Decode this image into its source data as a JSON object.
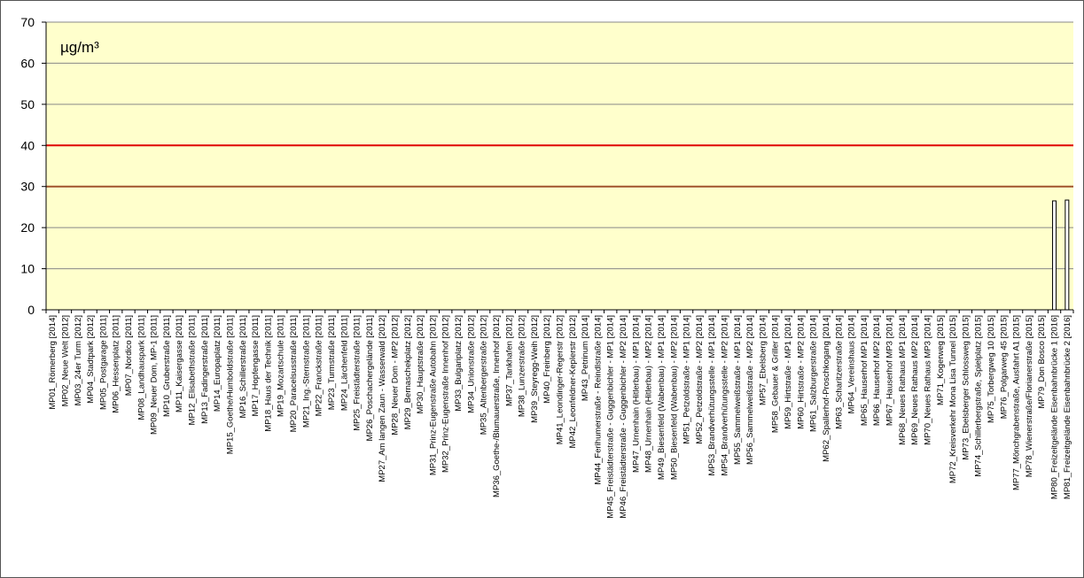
{
  "chart_data": {
    "type": "bar",
    "unit_label": "µg/m³",
    "ylim": [
      0,
      70
    ],
    "yticks": [
      0,
      10,
      20,
      30,
      40,
      50,
      60,
      70
    ],
    "reference_lines": [
      {
        "value": 40,
        "color": "#e00000"
      },
      {
        "value": 30,
        "color": "#a0522d"
      }
    ],
    "plot_background": "#ffffcc",
    "bar_color": "#ffffff",
    "grid": true,
    "categories": [
      "MP01_Römerberg [2014]",
      "MP02_Neue Welt [2012]",
      "MP03_24er Turm [2012]",
      "MP04_Stadtpark [2012]",
      "MP05_Postgarage [2011]",
      "MP06_Hessenplatz [2011]",
      "MP07_Nordico [2011]",
      "MP08_Landhauspark [2011]",
      "MP09_Neuer Dom, MP-1 [2011]",
      "MP10_Gruberstraße [2011]",
      "MP11_Kaisergasse [2011]",
      "MP12_Elisabethstraße [2011]",
      "MP13_Fadingerstraße [2011]",
      "MP14_Europaplatz [2011]",
      "MP15_Goethe/Humboldstraße [2011]",
      "MP16_Schillerstraße [2011]",
      "MP17_Hopfengasse [2011]",
      "MP18_Haus der Technik [2011]",
      "MP19_Mozartschule [2011]",
      "MP20_Paracelsusstraße [2011]",
      "MP21_Ing.-Sternstraße [2011]",
      "MP22_Franckstraße [2011]",
      "MP23_Turmstraße [2011]",
      "MP24_Lärchenfeld [2011]",
      "MP25_Freistädterstraße [2011]",
      "MP26_Poschachergelände [2011]",
      "MP27_Am langen Zaun - Wasserwald [2012]",
      "MP28_Neuer Dom - MP2 [2012]",
      "MP29_Bernaschekplatz [2012]",
      "MP30_Hauptstraße [2012]",
      "MP31_Prinz-Eugenstraße Autobahn [2012]",
      "MP32_Prinz-Eugenstraße Innenhof [2012]",
      "MP33_Bulgariplatz [2012]",
      "MP34_Unionstraße [2012]",
      "MP35_Altenbergerstraße [2012]",
      "MP36_Goethe-/Blumauerstraße, Innenhof [2012]",
      "MP37_Tankhafen [2012]",
      "MP38_Lunzerstraße [2012]",
      "MP39_Steyregg-Weih [2012]",
      "MP40_Freinberg [2012]",
      "MP41_Leondinger-Regerstr [2012]",
      "MP42_Leonfeldner-Keplerstr [2012]",
      "MP43_Petrinum [2014]",
      "MP44_Ferihumerstraße - Reindlstraße [2014]",
      "MP45_Freistädterstraße - Guggenbichler - MP1 [2014]",
      "MP46_Freistädterstraße - Guggenbichler - MP2 [2014]",
      "MP47_Urnenhain (Hitlerbau) - MP1 [2014]",
      "MP48_Urnenhain (Hitlerbau) - MP2 [2014]",
      "MP49_Biesenfeld (Wabenbau) - MP1 [2014]",
      "MP50_Biesenfeld (Wabenbau) - MP2 [2014]",
      "MP51_Petzoldstraße - MP1 [2014]",
      "MP52_Petzoldstraße - MP2 [2014]",
      "MP53_Brandverhütungsstelle - MP1 [2014]",
      "MP54_Brandverhütungsstelle - MP2 [2014]",
      "MP55_Sammelweißstraße - MP1 [2014]",
      "MP56_Sammelweißstraße - MP2 [2014]",
      "MP57_Ebelsberg [2014]",
      "MP58_Gebauer & Griller [2014]",
      "MP59_Hirtstraße - MP1 [2014]",
      "MP60_Hirtstraße - MP2 [2014]",
      "MP61_Salzburgerstraße [2014]",
      "MP62_Spallerhof-Proschkogang [2014]",
      "MP63_Scharitzerstraße [2014]",
      "MP64_Vereinshaus [2014]",
      "MP65_Hauserhof MP1 [2014]",
      "MP66_Hauserhof MP2 [2014]",
      "MP67_Hauserhof MP3 [2014]",
      "MP68_Neues Rathaus MP1 [2014]",
      "MP69_Neues Rathaus MP2 [2014]",
      "MP70_Neues Rathaus MP3 [2014]",
      "MP71_Kogerweg [2015]",
      "MP72_Kreisverkehr Mona Lisa Tunnel [2015]",
      "MP73_Ebelsberger Schlossweg [2015]",
      "MP74_Schillerbergstraße, Spielplatz [2015]",
      "MP75_Torbergweg 10 [2015]",
      "MP76_Polgarweg 45 [2015]",
      "MP77_Mönchgrabenstraße, Ausfahrt A1 [2015]",
      "MP78_Wienerstraße/Florianerstraße [2015]",
      "MP79_Don Bosco [2015]",
      "MP80_Freizeitgelände Eisenbahnbrücke 1 [2016]",
      "MP81_Freizeitgelände Eisenbahnbrücke 2 [2016]"
    ],
    "values": [
      null,
      null,
      null,
      null,
      null,
      null,
      null,
      null,
      null,
      null,
      null,
      null,
      null,
      null,
      null,
      null,
      null,
      null,
      null,
      null,
      null,
      null,
      null,
      null,
      null,
      null,
      null,
      null,
      null,
      null,
      null,
      null,
      null,
      null,
      null,
      null,
      null,
      null,
      null,
      null,
      null,
      null,
      null,
      null,
      null,
      null,
      null,
      null,
      null,
      null,
      null,
      null,
      null,
      null,
      null,
      null,
      null,
      null,
      null,
      null,
      null,
      null,
      null,
      null,
      null,
      null,
      null,
      null,
      null,
      null,
      null,
      null,
      null,
      null,
      null,
      null,
      null,
      null,
      null,
      26.5,
      26.7
    ]
  }
}
